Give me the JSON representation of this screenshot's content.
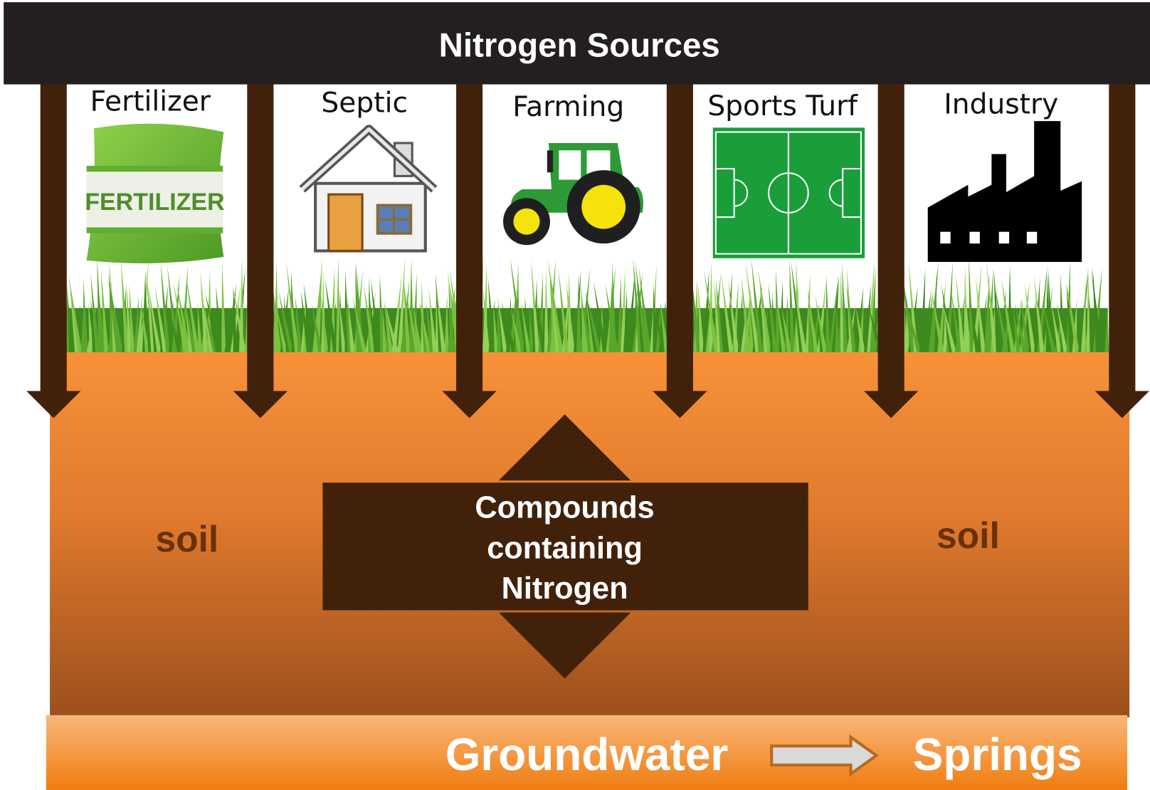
{
  "header": {
    "title": "Nitrogen Sources"
  },
  "sources": [
    {
      "label": "Fertilizer",
      "icon_text": "FERTILIZER"
    },
    {
      "label": "Septic"
    },
    {
      "label": "Farming"
    },
    {
      "label": "Sports Turf"
    },
    {
      "label": "Industry"
    }
  ],
  "soil": {
    "left": "soil",
    "right": "soil"
  },
  "center": {
    "lines": [
      "Compounds",
      "containing",
      "Nitrogen"
    ]
  },
  "footer": {
    "from": "Groundwater",
    "to": "Springs"
  }
}
